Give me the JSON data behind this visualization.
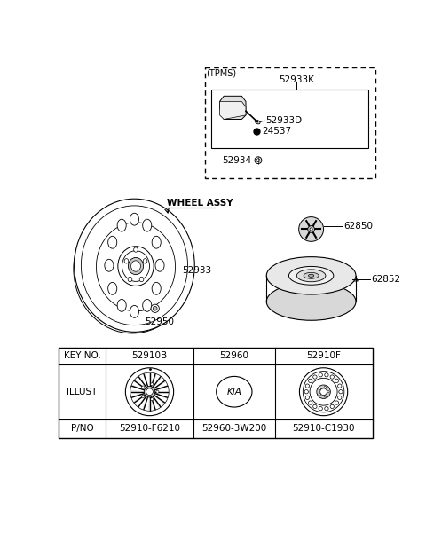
{
  "background_color": "#ffffff",
  "text_color": "#000000",
  "tpms": {
    "label": "(TPMS)",
    "part_k": "52933K",
    "part_d": "52933D",
    "part_24537": "24537",
    "part_52934": "52934"
  },
  "wheel": {
    "label": "WHEEL ASSY",
    "part_52933": "52933",
    "part_52950": "52950"
  },
  "spare": {
    "part_62850": "62850",
    "part_62852": "62852"
  },
  "table": {
    "key_no": "KEY NO.",
    "illust": "ILLUST",
    "pno": "P/NO",
    "col1_key": "52910B",
    "col2_key": "52960",
    "col3_key": "52910F",
    "col1_pno": "52910-F6210",
    "col2_pno": "52960-3W200",
    "col3_pno": "52910-C1930"
  }
}
